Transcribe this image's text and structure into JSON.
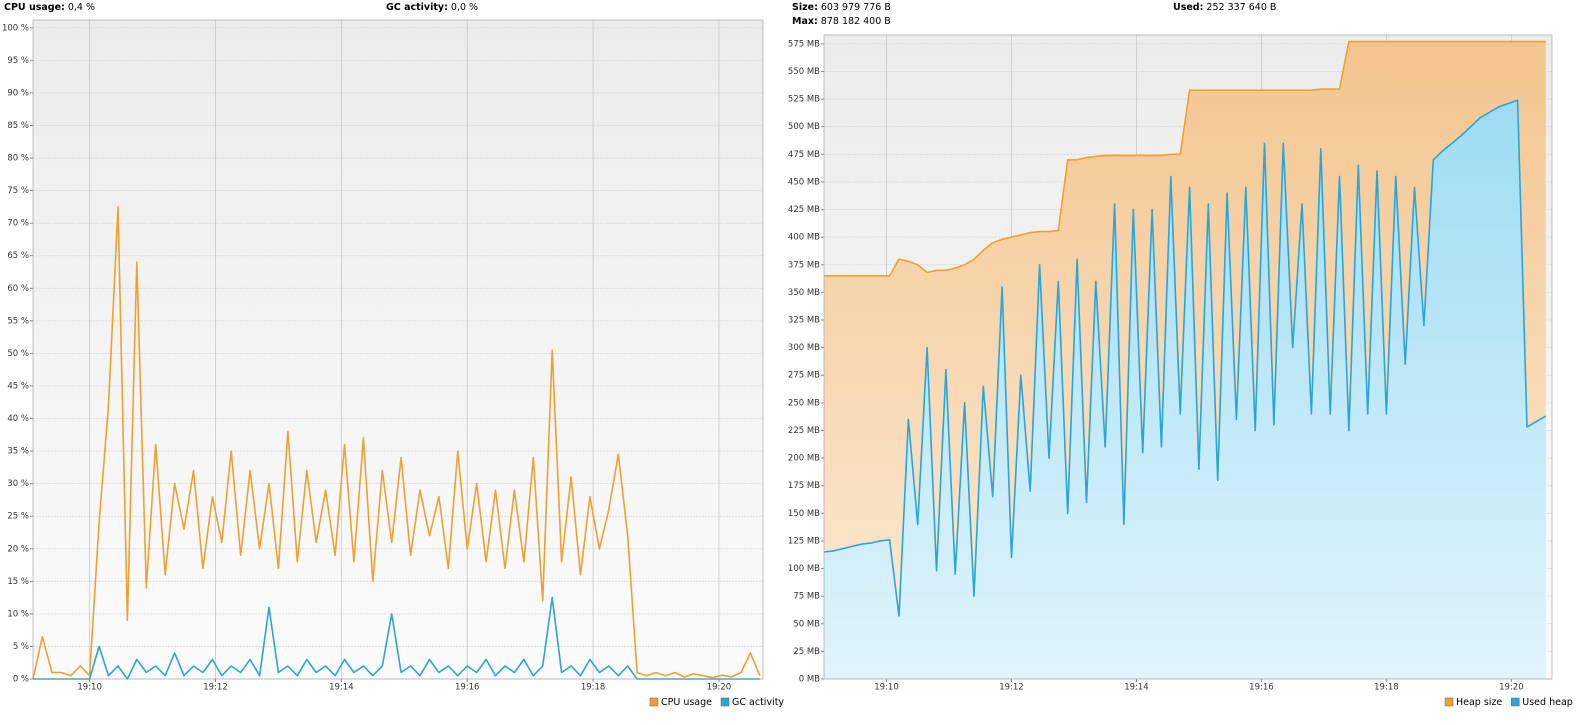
{
  "chart_data": [
    {
      "type": "line",
      "header": [
        {
          "label": "CPU usage:",
          "value": "0,4 %"
        },
        {
          "label": "GC activity:",
          "value": "0,0 %"
        }
      ],
      "x": [
        1149.1,
        1149.25,
        1149.4,
        1149.55,
        1149.7,
        1149.85,
        1150,
        1150.15,
        1150.3,
        1150.45,
        1150.6,
        1150.75,
        1150.9,
        1151.05,
        1151.2,
        1151.35,
        1151.5,
        1151.65,
        1151.8,
        1151.95,
        1152.1,
        1152.25,
        1152.4,
        1152.55,
        1152.7,
        1152.85,
        1153,
        1153.15,
        1153.3,
        1153.45,
        1153.6,
        1153.75,
        1153.9,
        1154.05,
        1154.2,
        1154.35,
        1154.5,
        1154.65,
        1154.8,
        1154.95,
        1155.1,
        1155.25,
        1155.4,
        1155.55,
        1155.7,
        1155.85,
        1156,
        1156.15,
        1156.3,
        1156.45,
        1156.6,
        1156.75,
        1156.9,
        1157.05,
        1157.2,
        1157.35,
        1157.5,
        1157.65,
        1157.8,
        1157.95,
        1158.1,
        1158.25,
        1158.4,
        1158.55,
        1158.7,
        1158.85,
        1159,
        1159.15,
        1159.3,
        1159.45,
        1159.6,
        1159.75,
        1159.9,
        1160.05,
        1160.2,
        1160.35,
        1160.5,
        1160.65
      ],
      "series": [
        {
          "name": "CPU usage",
          "color": "#f0a030",
          "values": [
            0,
            6.5,
            1,
            1,
            0.5,
            2,
            0.5,
            24,
            42,
            72.5,
            9,
            64,
            14,
            36,
            16,
            30,
            23,
            32,
            17,
            28,
            21,
            35,
            19,
            32,
            20,
            30,
            17,
            38,
            18,
            32,
            21,
            29,
            19,
            36,
            18,
            37,
            15,
            32,
            21,
            34,
            19,
            29,
            22,
            28,
            17,
            35,
            20,
            30,
            18,
            29,
            17,
            29,
            18,
            34,
            12,
            50.5,
            18,
            31,
            16,
            28,
            20,
            26,
            34.5,
            22,
            1,
            0.5,
            1,
            0.5,
            1,
            0.3,
            0.8,
            0.5,
            0.2,
            0.6,
            0.3,
            1,
            4,
            0.5
          ]
        },
        {
          "name": "GC activity",
          "color": "#2aa5d5",
          "values": [
            0,
            0,
            0,
            0,
            0,
            0,
            0,
            5,
            0.5,
            2,
            0,
            3,
            1,
            2,
            0.5,
            4,
            0.5,
            2,
            1,
            3,
            0.5,
            2,
            1,
            3,
            0.5,
            11,
            1,
            2,
            0.5,
            3,
            1,
            2,
            0.5,
            3,
            1,
            2,
            0.5,
            2,
            10,
            1,
            2,
            0.5,
            3,
            1,
            2,
            0.5,
            2,
            1,
            3,
            0.5,
            2,
            1,
            3,
            0.5,
            2,
            12.5,
            1,
            2,
            0.5,
            3,
            1,
            2,
            0.5,
            2,
            0,
            0,
            0,
            0,
            0,
            0,
            0,
            0,
            0,
            0,
            0,
            0,
            0,
            0
          ]
        }
      ],
      "xlim": [
        1149.1,
        1160.7
      ],
      "xticks": [
        {
          "value": 1150,
          "label": "19:10"
        },
        {
          "value": 1152,
          "label": "19:12"
        },
        {
          "value": 1154,
          "label": "19:14"
        },
        {
          "value": 1156,
          "label": "19:16"
        },
        {
          "value": 1158,
          "label": "19:18"
        },
        {
          "value": 1160,
          "label": "19:20"
        }
      ],
      "ylim": [
        0,
        101.2
      ],
      "yticks": [
        {
          "value": 0,
          "label": "0 %"
        },
        {
          "value": 5,
          "label": "5 %"
        },
        {
          "value": 10,
          "label": "10 %"
        },
        {
          "value": 15,
          "label": "15 %"
        },
        {
          "value": 20,
          "label": "20 %"
        },
        {
          "value": 25,
          "label": "25 %"
        },
        {
          "value": 30,
          "label": "30 %"
        },
        {
          "value": 35,
          "label": "35 %"
        },
        {
          "value": 40,
          "label": "40 %"
        },
        {
          "value": 45,
          "label": "45 %"
        },
        {
          "value": 50,
          "label": "50 %"
        },
        {
          "value": 55,
          "label": "55 %"
        },
        {
          "value": 60,
          "label": "60 %"
        },
        {
          "value": 65,
          "label": "65 %"
        },
        {
          "value": 70,
          "label": "70 %"
        },
        {
          "value": 75,
          "label": "75 %"
        },
        {
          "value": 80,
          "label": "80 %"
        },
        {
          "value": 85,
          "label": "85 %"
        },
        {
          "value": 90,
          "label": "90 %"
        },
        {
          "value": 95,
          "label": "95 %"
        },
        {
          "value": 100,
          "label": "100 %"
        }
      ],
      "grid": true,
      "legend": "lower right"
    },
    {
      "type": "area",
      "header": [
        {
          "label": "Size:",
          "value": "603 979 776 B"
        },
        {
          "label": "Max:",
          "value": "878 182 400 B"
        },
        {
          "label": "Used:",
          "value": "252 337 640 B"
        }
      ],
      "x": [
        1149,
        1149.15,
        1149.3,
        1149.45,
        1149.6,
        1149.75,
        1149.9,
        1150.05,
        1150.2,
        1150.35,
        1150.5,
        1150.65,
        1150.8,
        1150.95,
        1151.1,
        1151.25,
        1151.4,
        1151.55,
        1151.7,
        1151.85,
        1152,
        1152.15,
        1152.3,
        1152.45,
        1152.6,
        1152.75,
        1152.9,
        1153.05,
        1153.2,
        1153.35,
        1153.5,
        1153.65,
        1153.8,
        1153.95,
        1154.1,
        1154.25,
        1154.4,
        1154.55,
        1154.7,
        1154.85,
        1155,
        1155.15,
        1155.3,
        1155.45,
        1155.6,
        1155.75,
        1155.9,
        1156.05,
        1156.2,
        1156.35,
        1156.5,
        1156.65,
        1156.8,
        1156.95,
        1157.1,
        1157.25,
        1157.4,
        1157.55,
        1157.7,
        1157.85,
        1158,
        1158.15,
        1158.3,
        1158.45,
        1158.6,
        1158.75,
        1158.9,
        1159.05,
        1159.2,
        1159.35,
        1159.5,
        1159.65,
        1159.8,
        1159.95,
        1160.1,
        1160.25,
        1160.4,
        1160.55
      ],
      "series": [
        {
          "name": "Heap size",
          "color": "#f0a030",
          "values": [
            365,
            365,
            365,
            365,
            365,
            365,
            365,
            365,
            380,
            378,
            375,
            368,
            370,
            370,
            372,
            375,
            380,
            388,
            395,
            398,
            400,
            402,
            404,
            405,
            405,
            406,
            470,
            470,
            472,
            473,
            474,
            474,
            474,
            474,
            474,
            474,
            474,
            475,
            475,
            533,
            533,
            533,
            533,
            533,
            533,
            533,
            533,
            533,
            533,
            533,
            533,
            533,
            533,
            534,
            534,
            534,
            577,
            577,
            577,
            577,
            577,
            577,
            577,
            577,
            577,
            577,
            577,
            577,
            577,
            577,
            577,
            577,
            577,
            577,
            577,
            577,
            577,
            577
          ]
        },
        {
          "name": "Used heap",
          "color": "#2aa5d5",
          "values": [
            115,
            116,
            118,
            120,
            122,
            123,
            125,
            126,
            57,
            235,
            140,
            300,
            98,
            280,
            95,
            250,
            75,
            265,
            165,
            355,
            110,
            275,
            170,
            375,
            200,
            360,
            150,
            380,
            160,
            360,
            210,
            430,
            140,
            425,
            205,
            425,
            210,
            455,
            240,
            445,
            190,
            430,
            180,
            440,
            235,
            445,
            225,
            485,
            230,
            485,
            300,
            430,
            240,
            480,
            240,
            455,
            225,
            465,
            240,
            460,
            240,
            455,
            285,
            445,
            320,
            470,
            478,
            485,
            492,
            500,
            508,
            513,
            518,
            521,
            524,
            228,
            233,
            238
          ]
        }
      ],
      "xlim": [
        1149,
        1160.65
      ],
      "xticks": [
        {
          "value": 1150,
          "label": "19:10"
        },
        {
          "value": 1152,
          "label": "19:12"
        },
        {
          "value": 1154,
          "label": "19:14"
        },
        {
          "value": 1156,
          "label": "19:16"
        },
        {
          "value": 1158,
          "label": "19:18"
        },
        {
          "value": 1160,
          "label": "19:20"
        }
      ],
      "ylim": [
        0,
        583
      ],
      "yticks": [
        {
          "value": 0,
          "label": "0 MB"
        },
        {
          "value": 25,
          "label": "25 MB"
        },
        {
          "value": 50,
          "label": "50 MB"
        },
        {
          "value": 75,
          "label": "75 MB"
        },
        {
          "value": 100,
          "label": "100 MB"
        },
        {
          "value": 125,
          "label": "125 MB"
        },
        {
          "value": 150,
          "label": "150 MB"
        },
        {
          "value": 175,
          "label": "175 MB"
        },
        {
          "value": 200,
          "label": "200 MB"
        },
        {
          "value": 225,
          "label": "225 MB"
        },
        {
          "value": 250,
          "label": "250 MB"
        },
        {
          "value": 275,
          "label": "275 MB"
        },
        {
          "value": 300,
          "label": "300 MB"
        },
        {
          "value": 325,
          "label": "325 MB"
        },
        {
          "value": 350,
          "label": "350 MB"
        },
        {
          "value": 375,
          "label": "375 MB"
        },
        {
          "value": 400,
          "label": "400 MB"
        },
        {
          "value": 425,
          "label": "425 MB"
        },
        {
          "value": 450,
          "label": "450 MB"
        },
        {
          "value": 475,
          "label": "475 MB"
        },
        {
          "value": 500,
          "label": "500 MB"
        },
        {
          "value": 525,
          "label": "525 MB"
        },
        {
          "value": 550,
          "label": "550 MB"
        },
        {
          "value": 575,
          "label": "575 MB"
        }
      ],
      "grid": true,
      "legend": "lower right"
    }
  ]
}
